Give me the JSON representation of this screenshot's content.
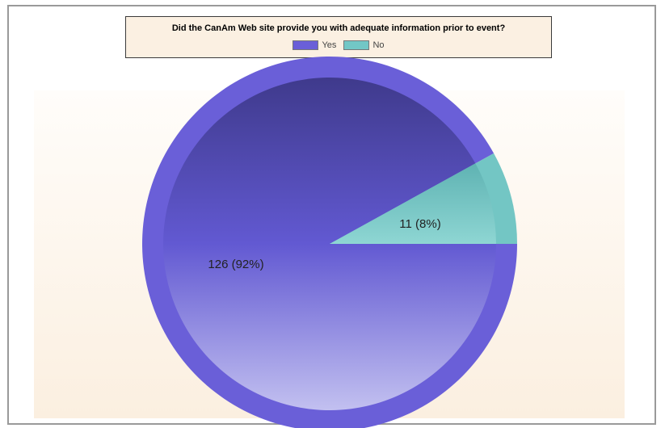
{
  "chart_data": {
    "type": "pie",
    "title": "Did the CanAm Web site provide you with adequate information prior to event?",
    "legend_position": "top",
    "slices": [
      {
        "name": "Yes",
        "value": 126,
        "percent": 92,
        "label": "126 (92%)",
        "color": "#6a5fd8"
      },
      {
        "name": "No",
        "value": 11,
        "percent": 8,
        "label": "11 (8%)",
        "color": "#72c7c6"
      }
    ]
  }
}
